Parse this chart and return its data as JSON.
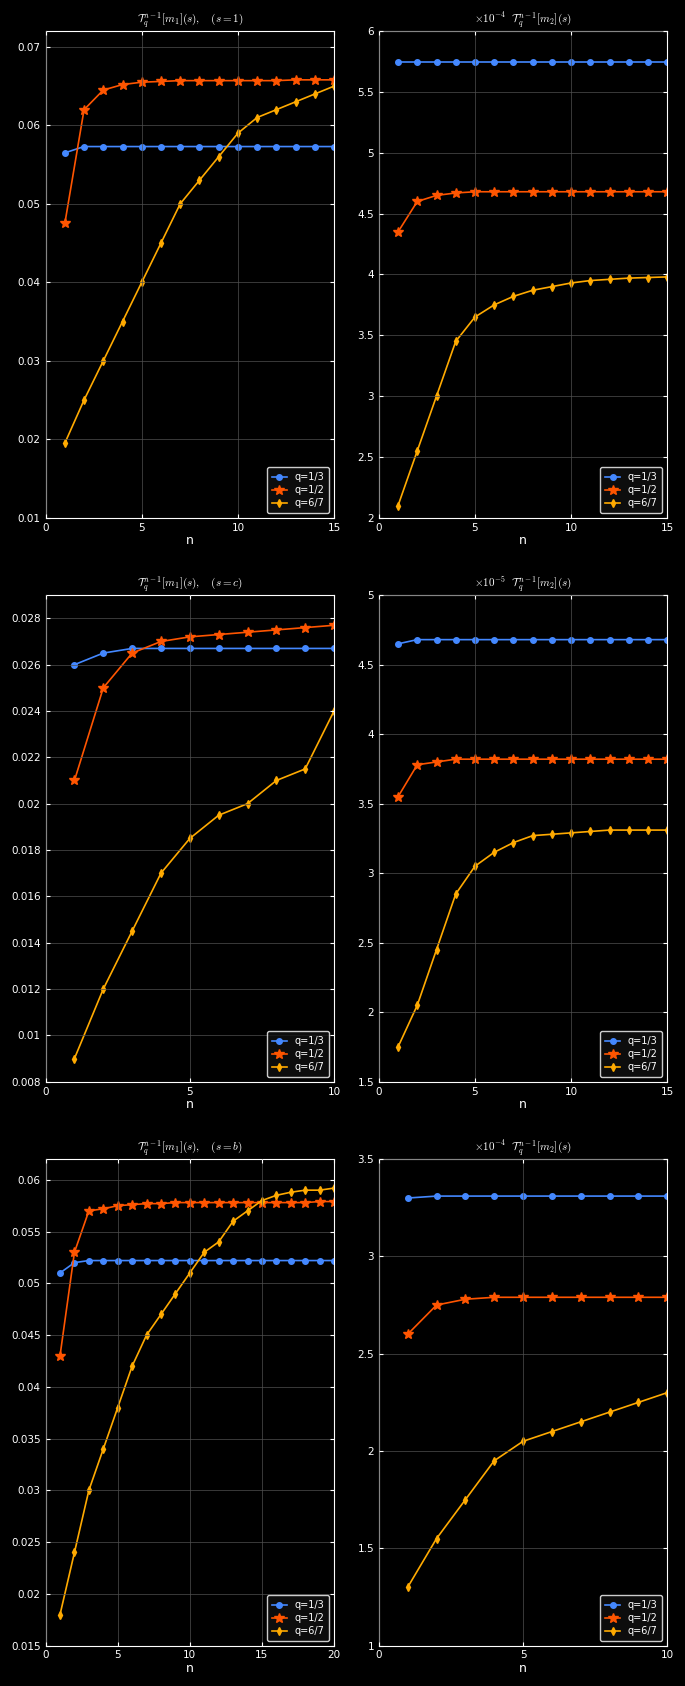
{
  "bg": "#000000",
  "fg": "#ffffff",
  "grid_color": "#505050",
  "colors": [
    "#4488ff",
    "#ff5500",
    "#ffaa00"
  ],
  "markers": [
    "o",
    "*",
    "d"
  ],
  "markersizes": [
    4,
    7,
    4
  ],
  "markersize_line": [
    4,
    7,
    4
  ],
  "lw": 1.2,
  "labels": [
    "q=1/3",
    "q=1/2",
    "q=6/7"
  ],
  "plots": [
    {
      "title": "$\\mathcal{T}_q^{n-1}[m_1](s), \\quad (s=1)$",
      "scale_prefix": null,
      "series": [
        {
          "n": [
            1,
            2,
            3,
            4,
            5,
            6,
            7,
            8,
            9,
            10,
            11,
            12,
            13,
            14,
            15
          ],
          "y": [
            0.0565,
            0.0573,
            0.0573,
            0.0573,
            0.0573,
            0.0573,
            0.0573,
            0.0573,
            0.0573,
            0.0573,
            0.0573,
            0.0573,
            0.0573,
            0.0573,
            0.0573
          ]
        },
        {
          "n": [
            1,
            2,
            3,
            4,
            5,
            6,
            7,
            8,
            9,
            10,
            11,
            12,
            13,
            14,
            15
          ],
          "y": [
            0.0475,
            0.062,
            0.0645,
            0.0652,
            0.0655,
            0.0656,
            0.0657,
            0.0657,
            0.0657,
            0.0657,
            0.0657,
            0.0657,
            0.0658,
            0.0658,
            0.0658
          ]
        },
        {
          "n": [
            1,
            2,
            3,
            4,
            5,
            6,
            7,
            8,
            9,
            10,
            11,
            12,
            13,
            14,
            15
          ],
          "y": [
            0.0195,
            0.025,
            0.03,
            0.035,
            0.04,
            0.045,
            0.05,
            0.053,
            0.056,
            0.059,
            0.061,
            0.062,
            0.063,
            0.064,
            0.065
          ]
        }
      ],
      "ylim": [
        0.01,
        0.072
      ],
      "yticks": [
        0.01,
        0.02,
        0.03,
        0.04,
        0.05,
        0.06,
        0.07
      ],
      "ytick_labels": [
        "0.01",
        "0.02",
        "0.03",
        "0.04",
        "0.05",
        "0.06",
        "0.07"
      ],
      "xlim": [
        0,
        15
      ],
      "xticks": [
        0,
        5,
        10,
        15
      ],
      "legend_loc": "lower right"
    },
    {
      "title": "$\\mathcal{T}_q^{n-1}[m_2](s)$",
      "scale_prefix": "$\\times 10^{-4}$",
      "series": [
        {
          "n": [
            1,
            2,
            3,
            4,
            5,
            6,
            7,
            8,
            9,
            10,
            11,
            12,
            13,
            14,
            15
          ],
          "y": [
            5.75,
            5.75,
            5.75,
            5.75,
            5.75,
            5.75,
            5.75,
            5.75,
            5.75,
            5.75,
            5.75,
            5.75,
            5.75,
            5.75,
            5.75
          ]
        },
        {
          "n": [
            1,
            2,
            3,
            4,
            5,
            6,
            7,
            8,
            9,
            10,
            11,
            12,
            13,
            14,
            15
          ],
          "y": [
            4.35,
            4.6,
            4.65,
            4.67,
            4.68,
            4.68,
            4.68,
            4.68,
            4.68,
            4.68,
            4.68,
            4.68,
            4.68,
            4.68,
            4.68
          ]
        },
        {
          "n": [
            1,
            2,
            3,
            4,
            5,
            6,
            7,
            8,
            9,
            10,
            11,
            12,
            13,
            14,
            15
          ],
          "y": [
            2.1,
            2.55,
            3.0,
            3.45,
            3.65,
            3.75,
            3.82,
            3.87,
            3.9,
            3.93,
            3.95,
            3.96,
            3.97,
            3.975,
            3.98
          ]
        }
      ],
      "ylim": [
        2.0,
        6.0
      ],
      "yticks": [
        2.0,
        2.5,
        3.0,
        3.5,
        4.0,
        4.5,
        5.0,
        5.5,
        6.0
      ],
      "ytick_labels": [
        "2",
        "2.5",
        "3",
        "3.5",
        "4",
        "4.5",
        "5",
        "5.5",
        "6"
      ],
      "xlim": [
        0,
        15
      ],
      "xticks": [
        0,
        5,
        10,
        15
      ],
      "legend_loc": "lower right"
    },
    {
      "title": "$\\mathcal{T}_q^{n-1}[m_1](s), \\quad (s=c)$",
      "scale_prefix": null,
      "series": [
        {
          "n": [
            1,
            2,
            3,
            4,
            5,
            6,
            7,
            8,
            9,
            10
          ],
          "y": [
            0.026,
            0.0265,
            0.0267,
            0.0267,
            0.0267,
            0.0267,
            0.0267,
            0.0267,
            0.0267,
            0.0267
          ]
        },
        {
          "n": [
            1,
            2,
            3,
            4,
            5,
            6,
            7,
            8,
            9,
            10
          ],
          "y": [
            0.021,
            0.025,
            0.0265,
            0.027,
            0.0272,
            0.0273,
            0.0274,
            0.0275,
            0.0276,
            0.0277
          ]
        },
        {
          "n": [
            1,
            2,
            3,
            4,
            5,
            6,
            7,
            8,
            9,
            10
          ],
          "y": [
            0.009,
            0.012,
            0.0145,
            0.017,
            0.0185,
            0.0195,
            0.02,
            0.021,
            0.0215,
            0.024
          ]
        }
      ],
      "ylim": [
        0.008,
        0.029
      ],
      "yticks": [
        0.008,
        0.01,
        0.012,
        0.014,
        0.016,
        0.018,
        0.02,
        0.022,
        0.024,
        0.026,
        0.028
      ],
      "ytick_labels": [
        "0.008",
        "0.01",
        "0.012",
        "0.014",
        "0.016",
        "0.018",
        "0.02",
        "0.022",
        "0.024",
        "0.026",
        "0.028"
      ],
      "xlim": [
        0,
        10
      ],
      "xticks": [
        0,
        5,
        10
      ],
      "legend_loc": "lower right"
    },
    {
      "title": "$\\mathcal{T}_q^{n-1}[m_2](s)$",
      "scale_prefix": "$\\times 10^{-5}$",
      "series": [
        {
          "n": [
            1,
            2,
            3,
            4,
            5,
            6,
            7,
            8,
            9,
            10,
            11,
            12,
            13,
            14,
            15
          ],
          "y": [
            4.65,
            4.68,
            4.68,
            4.68,
            4.68,
            4.68,
            4.68,
            4.68,
            4.68,
            4.68,
            4.68,
            4.68,
            4.68,
            4.68,
            4.68
          ]
        },
        {
          "n": [
            1,
            2,
            3,
            4,
            5,
            6,
            7,
            8,
            9,
            10,
            11,
            12,
            13,
            14,
            15
          ],
          "y": [
            3.55,
            3.78,
            3.8,
            3.82,
            3.82,
            3.82,
            3.82,
            3.82,
            3.82,
            3.82,
            3.82,
            3.82,
            3.82,
            3.82,
            3.82
          ]
        },
        {
          "n": [
            1,
            2,
            3,
            4,
            5,
            6,
            7,
            8,
            9,
            10,
            11,
            12,
            13,
            14,
            15
          ],
          "y": [
            1.75,
            2.05,
            2.45,
            2.85,
            3.05,
            3.15,
            3.22,
            3.27,
            3.28,
            3.29,
            3.3,
            3.31,
            3.31,
            3.31,
            3.31
          ]
        }
      ],
      "ylim": [
        1.5,
        5.0
      ],
      "yticks": [
        1.5,
        2.0,
        2.5,
        3.0,
        3.5,
        4.0,
        4.5,
        5.0
      ],
      "ytick_labels": [
        "1.5",
        "2",
        "2.5",
        "3",
        "3.5",
        "4",
        "4.5",
        "5"
      ],
      "xlim": [
        0,
        15
      ],
      "xticks": [
        0,
        5,
        10,
        15
      ],
      "legend_loc": "lower right"
    },
    {
      "title": "$\\mathcal{T}_q^{n-1}[m_1](s), \\quad (s=b)$",
      "scale_prefix": null,
      "series": [
        {
          "n": [
            1,
            2,
            3,
            4,
            5,
            6,
            7,
            8,
            9,
            10,
            11,
            12,
            13,
            14,
            15,
            16,
            17,
            18,
            19,
            20
          ],
          "y": [
            0.051,
            0.052,
            0.0522,
            0.0522,
            0.0522,
            0.0522,
            0.0522,
            0.0522,
            0.0522,
            0.0522,
            0.0522,
            0.0522,
            0.0522,
            0.0522,
            0.0522,
            0.0522,
            0.0522,
            0.0522,
            0.0522,
            0.0522
          ]
        },
        {
          "n": [
            1,
            2,
            3,
            4,
            5,
            6,
            7,
            8,
            9,
            10,
            11,
            12,
            13,
            14,
            15,
            16,
            17,
            18,
            19,
            20
          ],
          "y": [
            0.043,
            0.053,
            0.057,
            0.0572,
            0.0575,
            0.0576,
            0.0577,
            0.0577,
            0.0578,
            0.0578,
            0.0578,
            0.0578,
            0.0578,
            0.0578,
            0.0578,
            0.0578,
            0.0578,
            0.0578,
            0.0579,
            0.0579
          ]
        },
        {
          "n": [
            1,
            2,
            3,
            4,
            5,
            6,
            7,
            8,
            9,
            10,
            11,
            12,
            13,
            14,
            15,
            16,
            17,
            18,
            19,
            20
          ],
          "y": [
            0.018,
            0.024,
            0.03,
            0.034,
            0.038,
            0.042,
            0.045,
            0.047,
            0.049,
            0.051,
            0.053,
            0.054,
            0.056,
            0.057,
            0.058,
            0.0585,
            0.0588,
            0.059,
            0.059,
            0.0592
          ]
        }
      ],
      "ylim": [
        0.015,
        0.062
      ],
      "yticks": [
        0.015,
        0.02,
        0.025,
        0.03,
        0.035,
        0.04,
        0.045,
        0.05,
        0.055,
        0.06
      ],
      "ytick_labels": [
        "0.015",
        "0.02",
        "0.025",
        "0.03",
        "0.035",
        "0.04",
        "0.045",
        "0.05",
        "0.055",
        "0.06"
      ],
      "xlim": [
        0,
        20
      ],
      "xticks": [
        0,
        5,
        10,
        15,
        20
      ],
      "legend_loc": "lower right"
    },
    {
      "title": "$\\mathcal{T}_q^{n-1}[m_2](s)$",
      "scale_prefix": "$\\times 10^{-4}$",
      "series": [
        {
          "n": [
            1,
            2,
            3,
            4,
            5,
            6,
            7,
            8,
            9,
            10
          ],
          "y": [
            3.3,
            3.31,
            3.31,
            3.31,
            3.31,
            3.31,
            3.31,
            3.31,
            3.31,
            3.31
          ]
        },
        {
          "n": [
            1,
            2,
            3,
            4,
            5,
            6,
            7,
            8,
            9,
            10
          ],
          "y": [
            2.6,
            2.75,
            2.78,
            2.79,
            2.79,
            2.79,
            2.79,
            2.79,
            2.79,
            2.79
          ]
        },
        {
          "n": [
            1,
            2,
            3,
            4,
            5,
            6,
            7,
            8,
            9,
            10
          ],
          "y": [
            1.3,
            1.55,
            1.75,
            1.95,
            2.05,
            2.1,
            2.15,
            2.2,
            2.25,
            2.3
          ]
        }
      ],
      "ylim": [
        1.0,
        3.5
      ],
      "yticks": [
        1.0,
        1.5,
        2.0,
        2.5,
        3.0,
        3.5
      ],
      "ytick_labels": [
        "1",
        "1.5",
        "2",
        "2.5",
        "3",
        "3.5"
      ],
      "xlim": [
        0,
        10
      ],
      "xticks": [
        0,
        5,
        10
      ],
      "legend_loc": "lower right"
    }
  ]
}
